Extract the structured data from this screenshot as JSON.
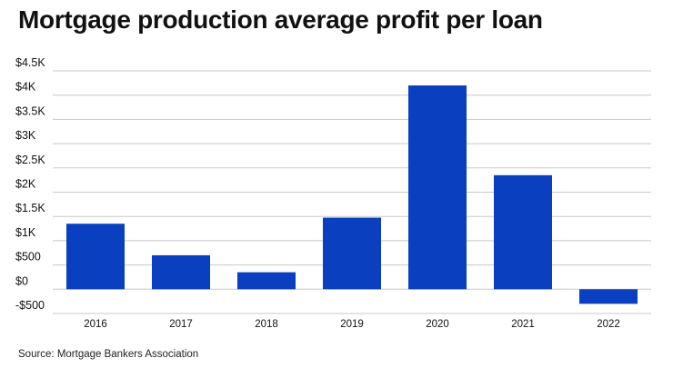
{
  "chart_data": {
    "type": "bar",
    "title": "Mortgage production average profit per loan",
    "source": "Source: Mortgage Bankers Association",
    "categories": [
      "2016",
      "2017",
      "2018",
      "2019",
      "2020",
      "2021",
      "2022"
    ],
    "values": [
      1350,
      700,
      350,
      1475,
      4200,
      2350,
      -301
    ],
    "ylim": [
      -500,
      4500
    ],
    "yticks": [
      4500,
      4000,
      3500,
      3000,
      2500,
      2000,
      1500,
      1000,
      500,
      0,
      -500
    ],
    "ytick_labels": [
      "$4.5K",
      "$4K",
      "$3.5K",
      "$3K",
      "$2.5K",
      "$2K",
      "$1.5K",
      "$1K",
      "$500",
      "$0",
      "-$500"
    ],
    "grid": true,
    "bar_color": "#0a3fbf",
    "grid_color": "#c8c8c8"
  }
}
